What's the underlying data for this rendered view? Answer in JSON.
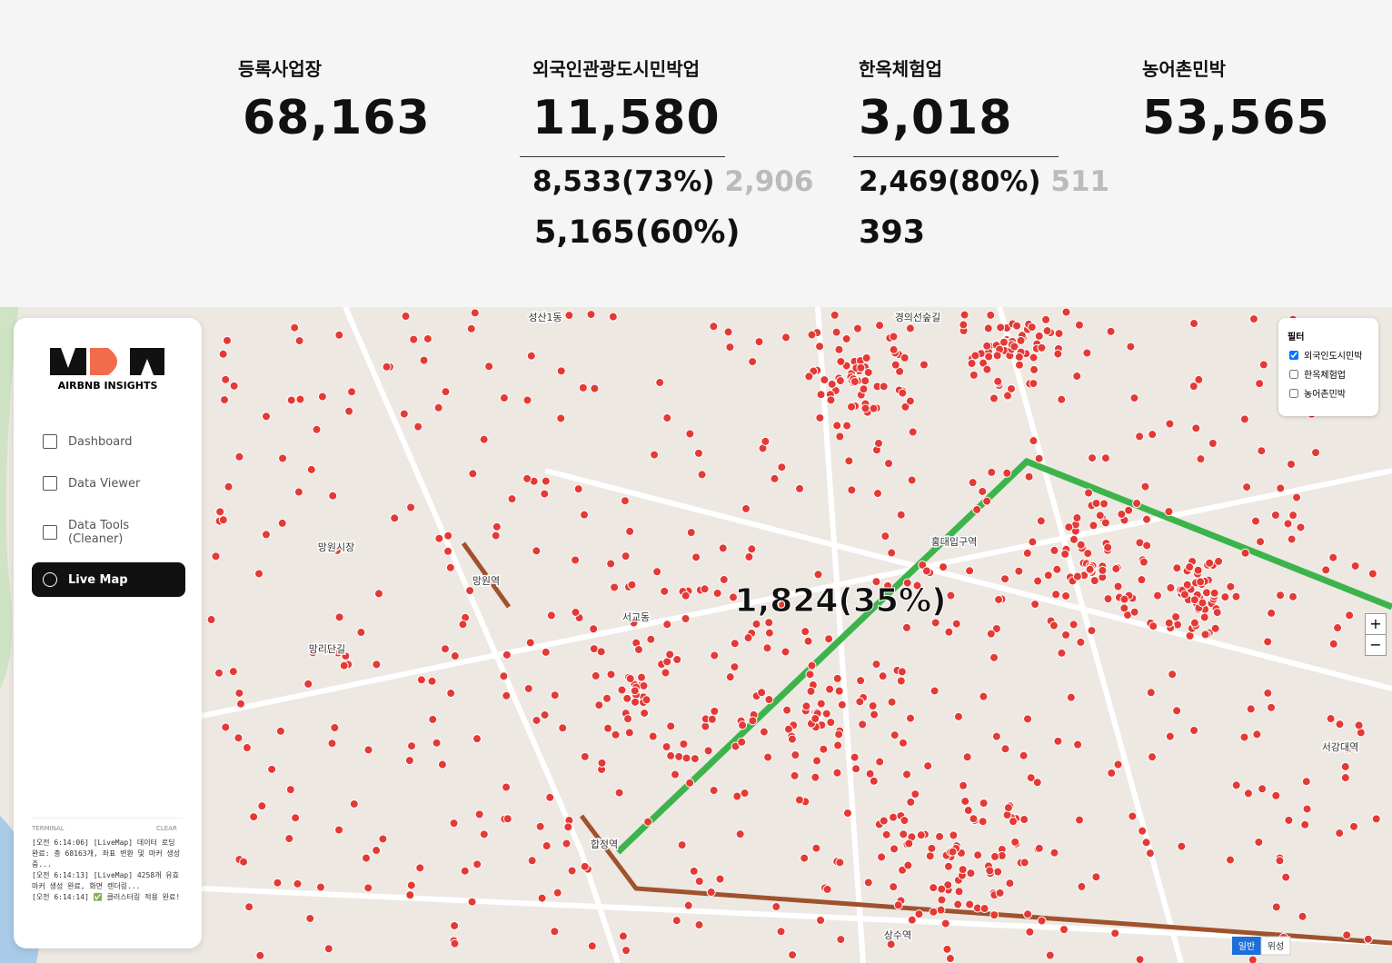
{
  "stats": [
    {
      "label": "등록사업장",
      "value": "68,163"
    },
    {
      "label": "외국인관광도시민박업",
      "value": "11,580",
      "line1": "8,533(73%)",
      "line1_muted": "2,906",
      "line2": "5,165(60%)"
    },
    {
      "label": "한옥체험업",
      "value": "3,018",
      "line1": "2,469(80%)",
      "line1_muted": "511",
      "line2": "393"
    },
    {
      "label": "농어촌민박",
      "value": "53,565"
    }
  ],
  "sidebar": {
    "brand": "AIRBNB INSIGHTS",
    "nav": [
      "Dashboard",
      "Data Viewer",
      "Data Tools (Cleaner)",
      "Live Map"
    ],
    "terminal": {
      "title": "TERMINAL",
      "clear": "CLEAR",
      "lines": [
        "[오전 6:14:06] [LiveMap] 데이터 로딩 완료: 총 68163개, 좌표 변환 및 마커 생성 중...",
        "[오전 6:14:13] [LiveMap] 4258개 유효 마커 생성 완료, 화면 렌더링...",
        "[오전 6:14:14] ✅ 클러스터링 적용 완료!"
      ]
    }
  },
  "map": {
    "overlay": "1,824(35%)",
    "filter": {
      "title": "필터",
      "options": [
        "외국인도시민박",
        "한옥체험업",
        "농어촌민박"
      ]
    },
    "zoom": [
      "+",
      "−"
    ],
    "map_types": [
      "일반",
      "위성"
    ],
    "labels": [
      "망원시장",
      "망리단길",
      "합정역",
      "홍대입구역",
      "상수역",
      "서강대역",
      "성산1동",
      "경의선숲길",
      "망원역",
      "서교동"
    ]
  }
}
